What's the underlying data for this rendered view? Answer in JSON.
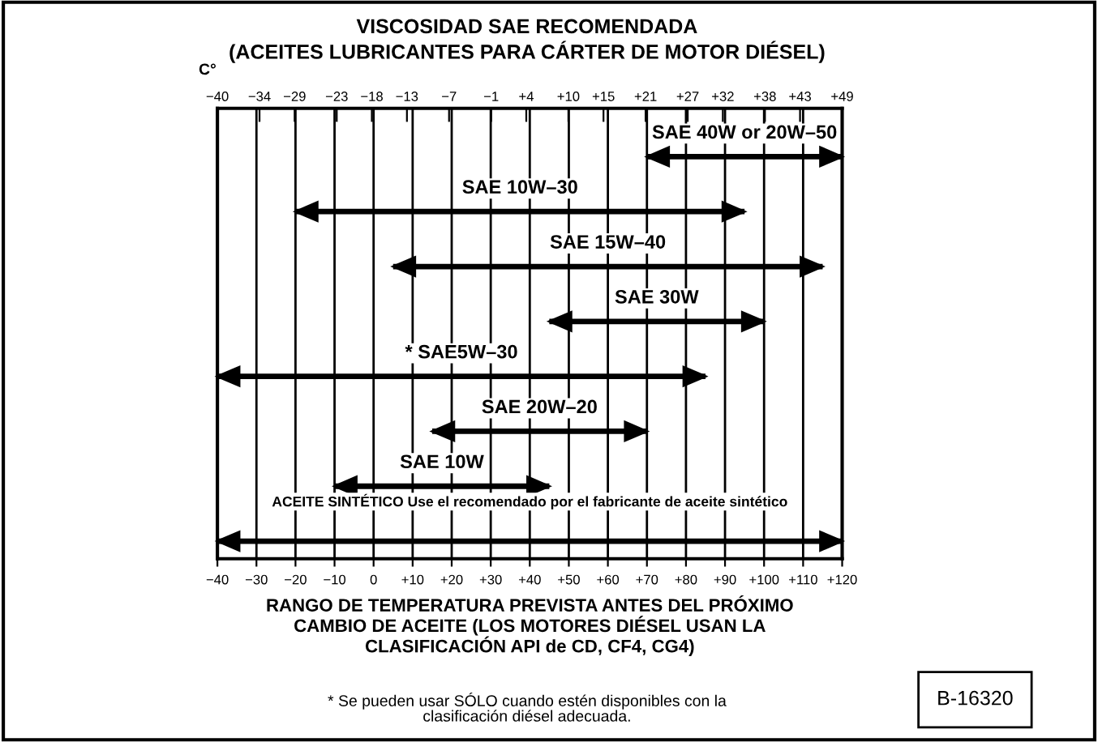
{
  "chart_data": {
    "type": "bar",
    "orientation": "horizontal",
    "title": "VISCOSIDAD SAE RECOMENDADA",
    "subtitle": "(ACEITES LUBRICANTES PARA CÁRTER DE MOTOR DIÉSEL)",
    "x2label": "C°",
    "xlabel": "RANGO DE TEMPERATURA PREVISTA ANTES DEL PRÓXIMO\nCAMBIO DE ACEITE (LOS MOTORES DIÉSEL USAN LA\nCLASIFICACIÓN API de CD, CF4, CG4)",
    "categories": [
      "SAE 40W or 20W–50",
      "SAE 10W–30",
      "SAE 15W–40",
      "SAE 30W",
      "* SAE5W–30",
      "SAE 20W–20",
      "SAE 10W",
      "ACEITE SINTÉTICO Use el recomendado por el fabricante de aceite sintético"
    ],
    "base": [
      70,
      -20,
      5,
      45,
      -40,
      15,
      -10,
      -40
    ],
    "values": [
      50,
      115,
      110,
      55,
      125,
      55,
      55,
      160
    ],
    "color": "#000000",
    "xlim": [
      -40,
      120
    ],
    "xticks": [
      {
        "value": -40,
        "label": "−40"
      },
      {
        "value": -30,
        "label": "−30"
      },
      {
        "value": -20,
        "label": "−20"
      },
      {
        "value": -10,
        "label": "−10"
      },
      0,
      {
        "value": 10,
        "label": "+10"
      },
      {
        "value": 20,
        "label": "+20"
      },
      {
        "value": 30,
        "label": "+30"
      },
      {
        "value": 40,
        "label": "+40"
      },
      {
        "value": 50,
        "label": "+50"
      },
      {
        "value": 60,
        "label": "+60"
      },
      {
        "value": 70,
        "label": "+70"
      },
      {
        "value": 80,
        "label": "+80"
      },
      {
        "value": 90,
        "label": "+90"
      },
      {
        "value": 100,
        "label": "+100"
      },
      {
        "value": 110,
        "label": "+110"
      },
      {
        "value": 120,
        "label": "+120"
      }
    ],
    "x2lim": [
      -40,
      49
    ],
    "x2ticks": [
      {
        "value": -40,
        "label": "−40"
      },
      {
        "value": -34,
        "label": "−34"
      },
      {
        "value": -29,
        "label": "−29"
      },
      {
        "value": -23,
        "label": "−23"
      },
      {
        "value": -18,
        "label": "−18"
      },
      {
        "value": -13,
        "label": "−13"
      },
      {
        "value": -7,
        "label": "−7"
      },
      {
        "value": -1,
        "label": "−1"
      },
      {
        "value": 4,
        "label": "+4"
      },
      {
        "value": 10,
        "label": "+10"
      },
      {
        "value": 15,
        "label": "+15"
      },
      {
        "value": 21,
        "label": "+21"
      },
      {
        "value": 27,
        "label": "+27"
      },
      {
        "value": 32,
        "label": "+32"
      },
      {
        "value": 38,
        "label": "+38"
      },
      {
        "value": 43,
        "label": "+43"
      },
      {
        "value": 49,
        "label": "+49"
      }
    ],
    "grid": "x",
    "legend": false,
    "annotations": [
      "* Se pueden usar SÓLO cuando estén disponibles con la\nclasificación diésel adecuada.",
      "B-16320"
    ]
  }
}
